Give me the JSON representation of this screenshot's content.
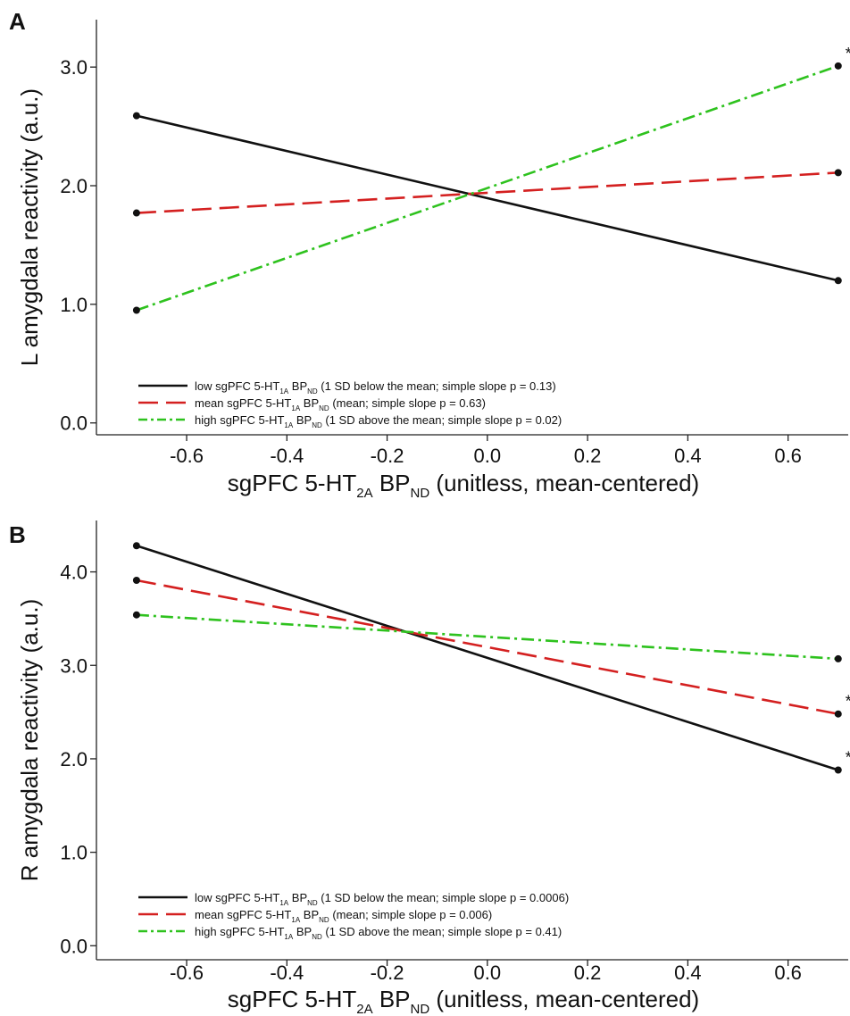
{
  "chart_data": [
    {
      "panel": "A",
      "type": "line",
      "xlabel": {
        "main": "sgPFC 5-HT",
        "sub1": "2A",
        "mid": " BP",
        "sub2": "ND",
        "tail": " (unitless, mean-centered)"
      },
      "ylabel": "L amygdala reactivity (a.u.)",
      "xlim": [
        -0.78,
        0.72
      ],
      "ylim": [
        -0.1,
        3.4
      ],
      "xticks": [
        -0.6,
        -0.4,
        -0.2,
        0.0,
        0.2,
        0.4,
        0.6
      ],
      "xtick_labels": [
        "-0.6",
        "-0.4",
        "-0.2",
        "0.0",
        "0.2",
        "0.4",
        "0.6"
      ],
      "yticks": [
        0.0,
        1.0,
        2.0,
        3.0
      ],
      "ytick_labels": [
        "0.0",
        "1.0",
        "2.0",
        "3.0"
      ],
      "x": [
        -0.7,
        0.7
      ],
      "series": [
        {
          "color": "#111111",
          "style": "solid",
          "values": [
            2.59,
            1.2
          ],
          "label": {
            "a": "low sgPFC 5-HT",
            "b": "1A",
            "c": " BP",
            "d": "ND",
            "e": " (1 SD below the mean; simple slope p = 0.13)"
          }
        },
        {
          "color": "#d42020",
          "style": "dashed",
          "values": [
            1.77,
            2.11
          ],
          "label": {
            "a": "mean sgPFC 5-HT",
            "b": "1A",
            "c": " BP",
            "d": "ND",
            "e": " (mean; simple slope p = 0.63)"
          }
        },
        {
          "color": "#2ec21e",
          "style": "dashdot",
          "values": [
            0.95,
            3.01
          ],
          "label": {
            "a": "high sgPFC 5-HT",
            "b": "1A",
            "c": " BP",
            "d": "ND",
            "e": " (1 SD above the mean; simple slope p = 0.02)"
          }
        }
      ],
      "annotations": [
        {
          "text": "*",
          "series": 2
        }
      ]
    },
    {
      "panel": "B",
      "type": "line",
      "xlabel": {
        "main": "sgPFC 5-HT",
        "sub1": "2A",
        "mid": " BP",
        "sub2": "ND",
        "tail": " (unitless, mean-centered)"
      },
      "ylabel": "R amygdala reactivity (a.u.)",
      "xlim": [
        -0.78,
        0.72
      ],
      "ylim": [
        -0.15,
        4.55
      ],
      "xticks": [
        -0.6,
        -0.4,
        -0.2,
        0.0,
        0.2,
        0.4,
        0.6
      ],
      "xtick_labels": [
        "-0.6",
        "-0.4",
        "-0.2",
        "0.0",
        "0.2",
        "0.4",
        "0.6"
      ],
      "yticks": [
        0.0,
        1.0,
        2.0,
        3.0,
        4.0
      ],
      "ytick_labels": [
        "0.0",
        "1.0",
        "2.0",
        "3.0",
        "4.0"
      ],
      "x": [
        -0.7,
        0.7
      ],
      "series": [
        {
          "color": "#111111",
          "style": "solid",
          "values": [
            4.28,
            1.88
          ],
          "label": {
            "a": "low sgPFC 5-HT",
            "b": "1A",
            "c": " BP",
            "d": "ND",
            "e": " (1 SD below the mean; simple slope p = 0.0006)"
          }
        },
        {
          "color": "#d42020",
          "style": "dashed",
          "values": [
            3.91,
            2.48
          ],
          "label": {
            "a": "mean sgPFC 5-HT",
            "b": "1A",
            "c": " BP",
            "d": "ND",
            "e": " (mean; simple slope p = 0.006)"
          }
        },
        {
          "color": "#2ec21e",
          "style": "dashdot",
          "values": [
            3.54,
            3.07
          ],
          "label": {
            "a": "high sgPFC 5-HT",
            "b": "1A",
            "c": " BP",
            "d": "ND",
            "e": " (1 SD above the mean; simple slope p = 0.41)"
          }
        }
      ],
      "annotations": [
        {
          "text": "*",
          "series": 1
        },
        {
          "text": "*",
          "series": 0
        }
      ]
    }
  ]
}
